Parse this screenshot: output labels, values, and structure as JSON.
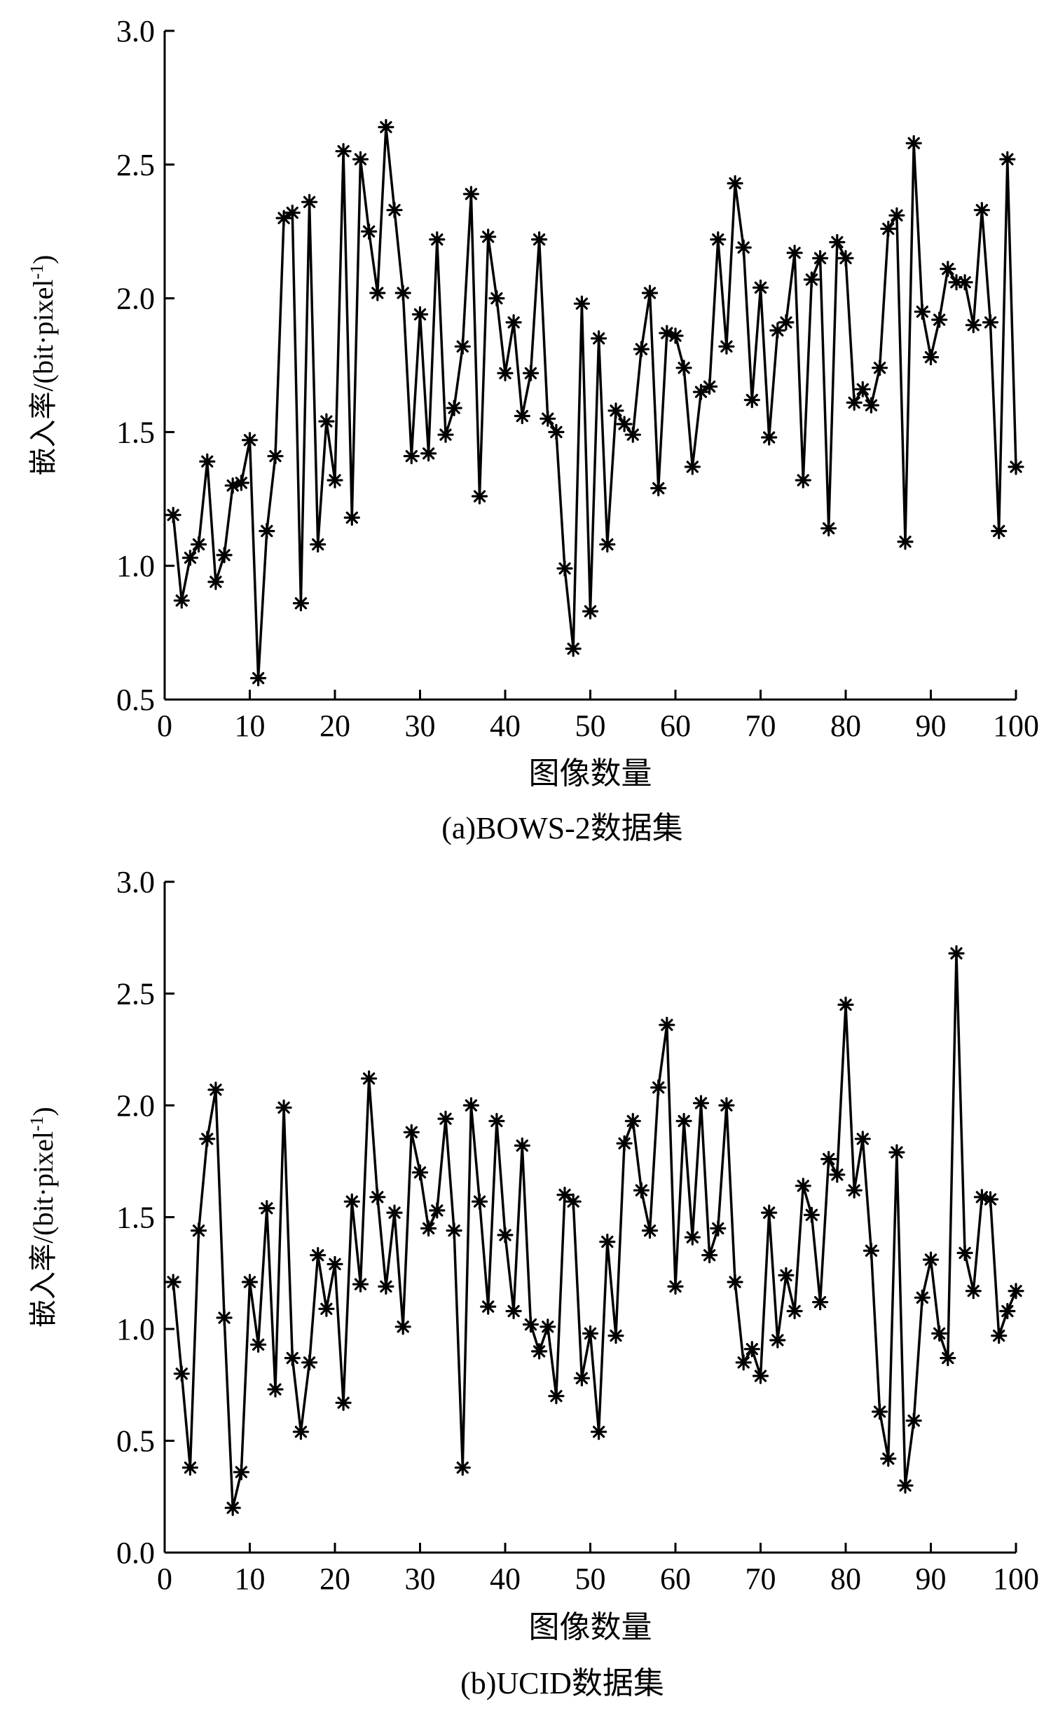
{
  "chart_data": [
    {
      "type": "line",
      "caption": "(a)BOWS-2数据集",
      "xlabel": "图像数量",
      "ylabel": "嵌入率/(bit·pixel",
      "ylabel_sup": "-1",
      "ylabel_close": ")",
      "xlim": [
        0,
        100
      ],
      "ylim": [
        0.5,
        3.0
      ],
      "xticks": [
        0,
        10,
        20,
        30,
        40,
        50,
        60,
        70,
        80,
        90,
        100
      ],
      "yticks": [
        "0.5",
        "1.0",
        "1.5",
        "2.0",
        "2.5",
        "3.0"
      ],
      "marker": "asterisk",
      "color": "#000000",
      "series": [
        {
          "x": [
            1,
            2,
            3,
            4,
            5,
            6,
            7,
            8,
            9,
            10,
            11,
            12,
            13,
            14,
            15,
            16,
            17,
            18,
            19,
            20,
            21,
            22,
            23,
            24,
            25,
            26,
            27,
            28,
            29,
            30,
            31,
            32,
            33,
            34,
            35,
            36,
            37,
            38,
            39,
            40,
            41,
            42,
            43,
            44,
            45,
            46,
            47,
            48,
            49,
            50,
            51,
            52,
            53,
            54,
            55,
            56,
            57,
            58,
            59,
            60,
            61,
            62,
            63,
            64,
            65,
            66,
            67,
            68,
            69,
            70,
            71,
            72,
            73,
            74,
            75,
            76,
            77,
            78,
            79,
            80,
            81,
            82,
            83,
            84,
            85,
            86,
            87,
            88,
            89,
            90,
            91,
            92,
            93,
            94,
            95,
            96,
            97,
            98,
            99,
            100
          ],
          "values": [
            1.19,
            0.87,
            1.03,
            1.08,
            1.39,
            0.94,
            1.04,
            1.3,
            1.31,
            1.47,
            0.58,
            1.13,
            1.41,
            2.3,
            2.32,
            0.86,
            2.36,
            1.08,
            1.54,
            1.32,
            2.55,
            1.18,
            2.52,
            2.25,
            2.02,
            2.64,
            2.33,
            2.02,
            1.41,
            1.94,
            1.42,
            2.22,
            1.49,
            1.59,
            1.82,
            2.39,
            1.26,
            2.23,
            2.0,
            1.72,
            1.91,
            1.56,
            1.72,
            2.22,
            1.55,
            1.5,
            0.99,
            0.69,
            1.98,
            0.83,
            1.85,
            1.08,
            1.58,
            1.53,
            1.49,
            1.81,
            2.02,
            1.29,
            1.87,
            1.86,
            1.74,
            1.37,
            1.65,
            1.67,
            2.22,
            1.82,
            2.43,
            2.19,
            1.62,
            2.04,
            1.48,
            1.88,
            1.91,
            2.17,
            1.32,
            2.07,
            2.15,
            1.14,
            2.21,
            2.15,
            1.61,
            1.66,
            1.6,
            1.74,
            2.26,
            2.31,
            1.09,
            2.58,
            1.95,
            1.78,
            1.92,
            2.11,
            2.06,
            2.06,
            1.9,
            2.33,
            1.91,
            1.13,
            2.52,
            1.37
          ]
        }
      ]
    },
    {
      "type": "line",
      "caption": "(b)UCID数据集",
      "xlabel": "图像数量",
      "ylabel": "嵌入率/(bit·pixel",
      "ylabel_sup": "-1",
      "ylabel_close": ")",
      "xlim": [
        0,
        100
      ],
      "ylim": [
        0.0,
        3.0
      ],
      "xticks": [
        0,
        10,
        20,
        30,
        40,
        50,
        60,
        70,
        80,
        90,
        100
      ],
      "yticks": [
        "0.0",
        "0.5",
        "1.0",
        "1.5",
        "2.0",
        "2.5",
        "3.0"
      ],
      "marker": "asterisk",
      "color": "#000000",
      "series": [
        {
          "x": [
            1,
            2,
            3,
            4,
            5,
            6,
            7,
            8,
            9,
            10,
            11,
            12,
            13,
            14,
            15,
            16,
            17,
            18,
            19,
            20,
            21,
            22,
            23,
            24,
            25,
            26,
            27,
            28,
            29,
            30,
            31,
            32,
            33,
            34,
            35,
            36,
            37,
            38,
            39,
            40,
            41,
            42,
            43,
            44,
            45,
            46,
            47,
            48,
            49,
            50,
            51,
            52,
            53,
            54,
            55,
            56,
            57,
            58,
            59,
            60,
            61,
            62,
            63,
            64,
            65,
            66,
            67,
            68,
            69,
            70,
            71,
            72,
            73,
            74,
            75,
            76,
            77,
            78,
            79,
            80,
            81,
            82,
            83,
            84,
            85,
            86,
            87,
            88,
            89,
            90,
            91,
            92,
            93,
            94,
            95,
            96,
            97,
            98,
            99,
            100
          ],
          "values": [
            1.21,
            0.8,
            0.38,
            1.44,
            1.85,
            2.07,
            1.05,
            0.2,
            0.36,
            1.21,
            0.93,
            1.54,
            0.73,
            1.99,
            0.87,
            0.54,
            0.85,
            1.33,
            1.09,
            1.29,
            0.67,
            1.57,
            1.2,
            2.12,
            1.59,
            1.19,
            1.52,
            1.01,
            1.88,
            1.7,
            1.45,
            1.53,
            1.94,
            1.44,
            0.38,
            2.0,
            1.57,
            1.1,
            1.93,
            1.42,
            1.08,
            1.82,
            1.02,
            0.9,
            1.01,
            0.7,
            1.6,
            1.57,
            0.78,
            0.98,
            0.54,
            1.39,
            0.97,
            1.83,
            1.93,
            1.62,
            1.44,
            2.08,
            2.36,
            1.19,
            1.93,
            1.41,
            2.01,
            1.33,
            1.45,
            2.0,
            1.21,
            0.85,
            0.91,
            0.79,
            1.52,
            0.95,
            1.24,
            1.08,
            1.64,
            1.51,
            1.12,
            1.76,
            1.69,
            2.45,
            1.62,
            1.85,
            1.35,
            0.63,
            0.42,
            1.79,
            0.3,
            0.59,
            1.14,
            1.31,
            0.98,
            0.87,
            2.68,
            1.34,
            1.17,
            1.59,
            1.58,
            0.97,
            1.08,
            1.17
          ]
        }
      ]
    }
  ]
}
